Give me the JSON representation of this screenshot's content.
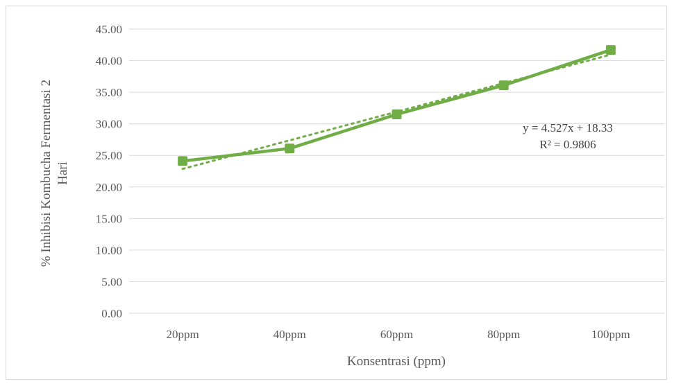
{
  "chart_data": {
    "type": "line",
    "categories": [
      "20ppm",
      "40ppm",
      "60ppm",
      "80ppm",
      "100ppm"
    ],
    "series": [
      {
        "values": [
          24.1,
          26.1,
          31.5,
          36.1,
          41.7
        ]
      }
    ],
    "trendline": {
      "type": "linear",
      "slope": 4.527,
      "intercept": 18.33,
      "equation": "y = 4.527x + 18.33",
      "r_squared": "R² = 0.9806"
    },
    "xlabel": "Konsentrasi (ppm)",
    "ylabel_line1": "% Inhibisi Kombucha Fermentasi 2",
    "ylabel_line2": "Hari",
    "ylim": [
      0,
      45
    ],
    "ytick_step": 5,
    "ytick_labels": [
      "0.00",
      "5.00",
      "10.00",
      "15.00",
      "20.00",
      "25.00",
      "30.00",
      "35.00",
      "40.00",
      "45.00"
    ],
    "grid": true,
    "legend": "none",
    "colors": {
      "series": "#70ad47",
      "grid": "#d9d9d9",
      "axis": "#d9d9d9"
    }
  }
}
